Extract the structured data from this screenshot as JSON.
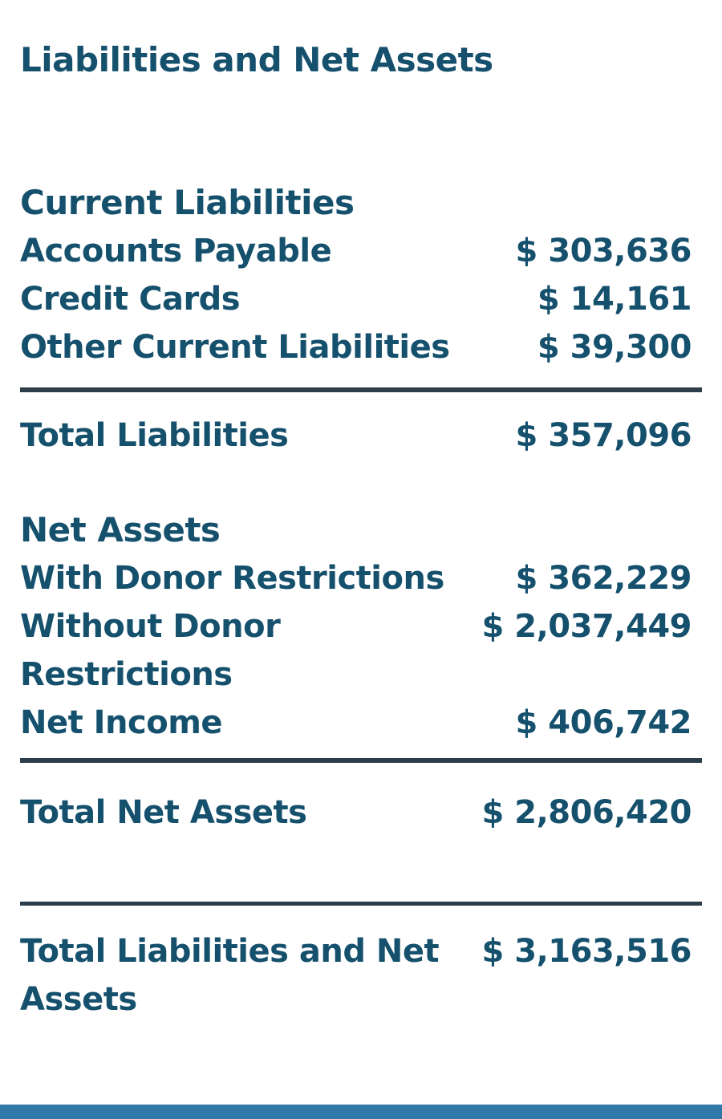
{
  "title": "Liabilities and Net Assets",
  "colors": {
    "text": "#15506d",
    "divider": "#2b3e4a",
    "accent_bar": "#2f78a7",
    "background": "#ffffff"
  },
  "sections": [
    {
      "heading": "Current Liabilities",
      "rows": [
        {
          "label": "Accounts Payable",
          "value": "$ 303,636"
        },
        {
          "label": "Credit Cards",
          "value": "$ 14,161"
        },
        {
          "label": "Other Current Liabilities",
          "value": "$ 39,300"
        }
      ],
      "total": {
        "label": "Total Liabilities",
        "value": "$ 357,096"
      }
    },
    {
      "heading": "Net Assets",
      "rows": [
        {
          "label": "With Donor Restrictions",
          "value": "$ 362,229"
        },
        {
          "label": "Without Donor Restrictions",
          "value": "$ 2,037,449"
        },
        {
          "label": "Net Income",
          "value": "$ 406,742"
        }
      ],
      "total": {
        "label": "Total Net Assets",
        "value": "$ 2,806,420"
      }
    }
  ],
  "grand_total": {
    "label": "Total Liabilities and Net Assets",
    "value": "$ 3,163,516"
  }
}
